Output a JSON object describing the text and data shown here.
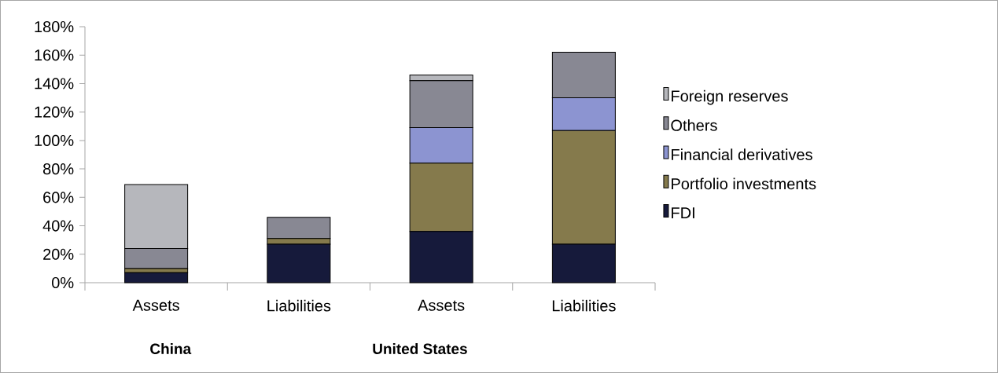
{
  "chart_data": {
    "type": "bar",
    "stacked": true,
    "categories": [
      "Assets",
      "Liabilities",
      "Assets",
      "Liabilities"
    ],
    "series": [
      {
        "name": "FDI",
        "color": "#161a3b",
        "values": [
          7,
          27,
          36,
          27
        ]
      },
      {
        "name": "Portfolio investments",
        "color": "#857a4c",
        "values": [
          3,
          4,
          48,
          80
        ]
      },
      {
        "name": "Financial derivatives",
        "color": "#8c94d1",
        "values": [
          null,
          null,
          25,
          23
        ]
      },
      {
        "name": "Others",
        "color": "#888893",
        "values": [
          14,
          15,
          33,
          32
        ]
      },
      {
        "name": "Foreign reserves",
        "color": "#b6b7bc",
        "values": [
          45,
          null,
          4,
          null
        ]
      }
    ],
    "ylim": [
      0,
      180
    ],
    "yticks": [
      {
        "value": 0,
        "label": "0%"
      },
      {
        "value": 20,
        "label": "20%"
      },
      {
        "value": 40,
        "label": "40%"
      },
      {
        "value": 60,
        "label": "60%"
      },
      {
        "value": 80,
        "label": "80%"
      },
      {
        "value": 100,
        "label": "100%"
      },
      {
        "value": 120,
        "label": "120%"
      },
      {
        "value": 140,
        "label": "140%"
      },
      {
        "value": 160,
        "label": "160%"
      },
      {
        "value": 180,
        "label": "180%"
      }
    ],
    "annotations": [
      "China",
      "United States"
    ],
    "legend": "right"
  }
}
